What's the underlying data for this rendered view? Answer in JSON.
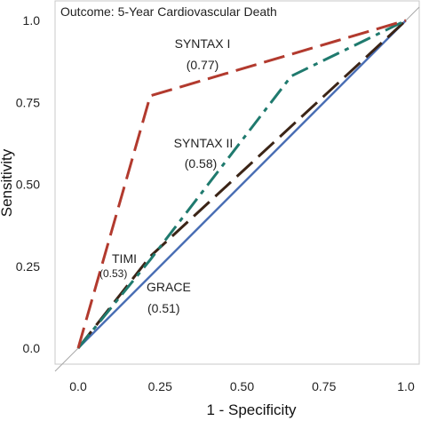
{
  "chart_data": {
    "type": "line",
    "title": "Outcome: 5-Year Cardiovascular Death",
    "xlabel": "1 - Specificity",
    "ylabel": "Sensitivity",
    "xlim": [
      0,
      1
    ],
    "ylim": [
      0,
      1
    ],
    "x_ticks": [
      "0.0",
      "0.25",
      "0.50",
      "0.75",
      "1.0"
    ],
    "y_ticks": [
      "0.0",
      "0.25",
      "0.50",
      "0.75",
      "1.0"
    ],
    "grid": false,
    "legend": "none",
    "series": [
      {
        "name": "SYNTAX I",
        "auc": "(0.77)",
        "color": "#b23a2e",
        "style": "long-dash",
        "x": [
          0,
          0.22,
          1
        ],
        "y": [
          0,
          0.77,
          1
        ]
      },
      {
        "name": "SYNTAX II",
        "auc": "(0.58)",
        "color": "#1f7a6e",
        "style": "dash-dot",
        "x": [
          0,
          0.22,
          0.65,
          1
        ],
        "y": [
          0,
          0.27,
          0.83,
          1
        ]
      },
      {
        "name": "TIMI",
        "auc": "(0.53)",
        "color": "#3b2416",
        "style": "long-dash",
        "x": [
          0,
          0.22,
          1
        ],
        "y": [
          0,
          0.28,
          1
        ]
      },
      {
        "name": "GRACE",
        "auc": "(0.51)",
        "color": "#4a6fb5",
        "style": "solid",
        "x": [
          0,
          1
        ],
        "y": [
          0,
          1
        ]
      }
    ],
    "reference_line": {
      "color": "#a8a8a8",
      "x": [
        0,
        1
      ],
      "y": [
        0,
        1
      ]
    }
  }
}
